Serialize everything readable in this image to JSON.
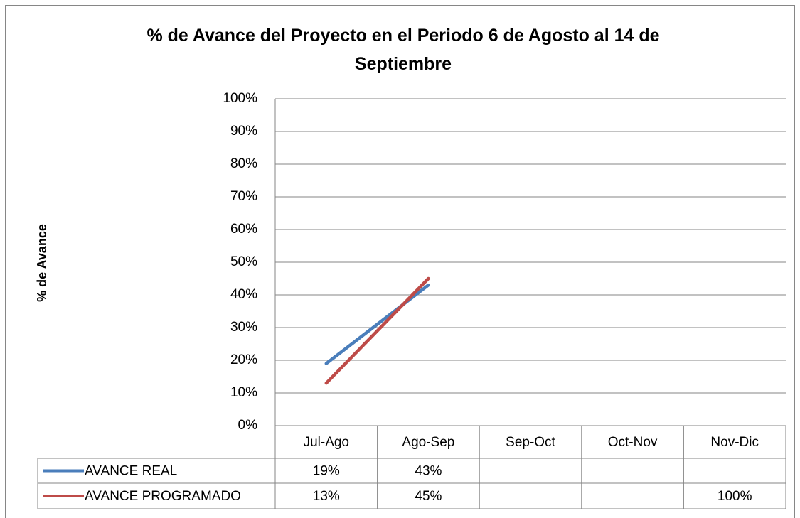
{
  "chart_data": {
    "type": "line",
    "title": "% de Avance del Proyecto en el Periodo 6 de Agosto al 14 de Septiembre",
    "y_label": "% de Avance",
    "categories": [
      "Jul-Ago",
      "Ago-Sep",
      "Sep-Oct",
      "Oct-Nov",
      "Nov-Dic"
    ],
    "series": [
      {
        "name": "AVANCE REAL",
        "color": "#4a7ebb",
        "values": [
          19,
          43,
          null,
          null,
          null
        ],
        "value_labels": [
          "19%",
          "43%",
          null,
          null,
          null
        ]
      },
      {
        "name": "AVANCE PROGRAMADO",
        "color": "#be4b48",
        "values": [
          13,
          45,
          null,
          null,
          100
        ],
        "value_labels": [
          "13%",
          "45%",
          null,
          null,
          "100%"
        ]
      }
    ],
    "ylim": [
      0,
      100
    ],
    "yticks": [
      {
        "value": 0,
        "label": "0%"
      },
      {
        "value": 10,
        "label": "10%"
      },
      {
        "value": 20,
        "label": "20%"
      },
      {
        "value": 30,
        "label": "30%"
      },
      {
        "value": 40,
        "label": "40%"
      },
      {
        "value": 50,
        "label": "50%"
      },
      {
        "value": 60,
        "label": "60%"
      },
      {
        "value": 70,
        "label": "70%"
      },
      {
        "value": 80,
        "label": "80%"
      },
      {
        "value": 90,
        "label": "90%"
      },
      {
        "value": 100,
        "label": "100%"
      }
    ],
    "grid": true,
    "data_table": true
  }
}
